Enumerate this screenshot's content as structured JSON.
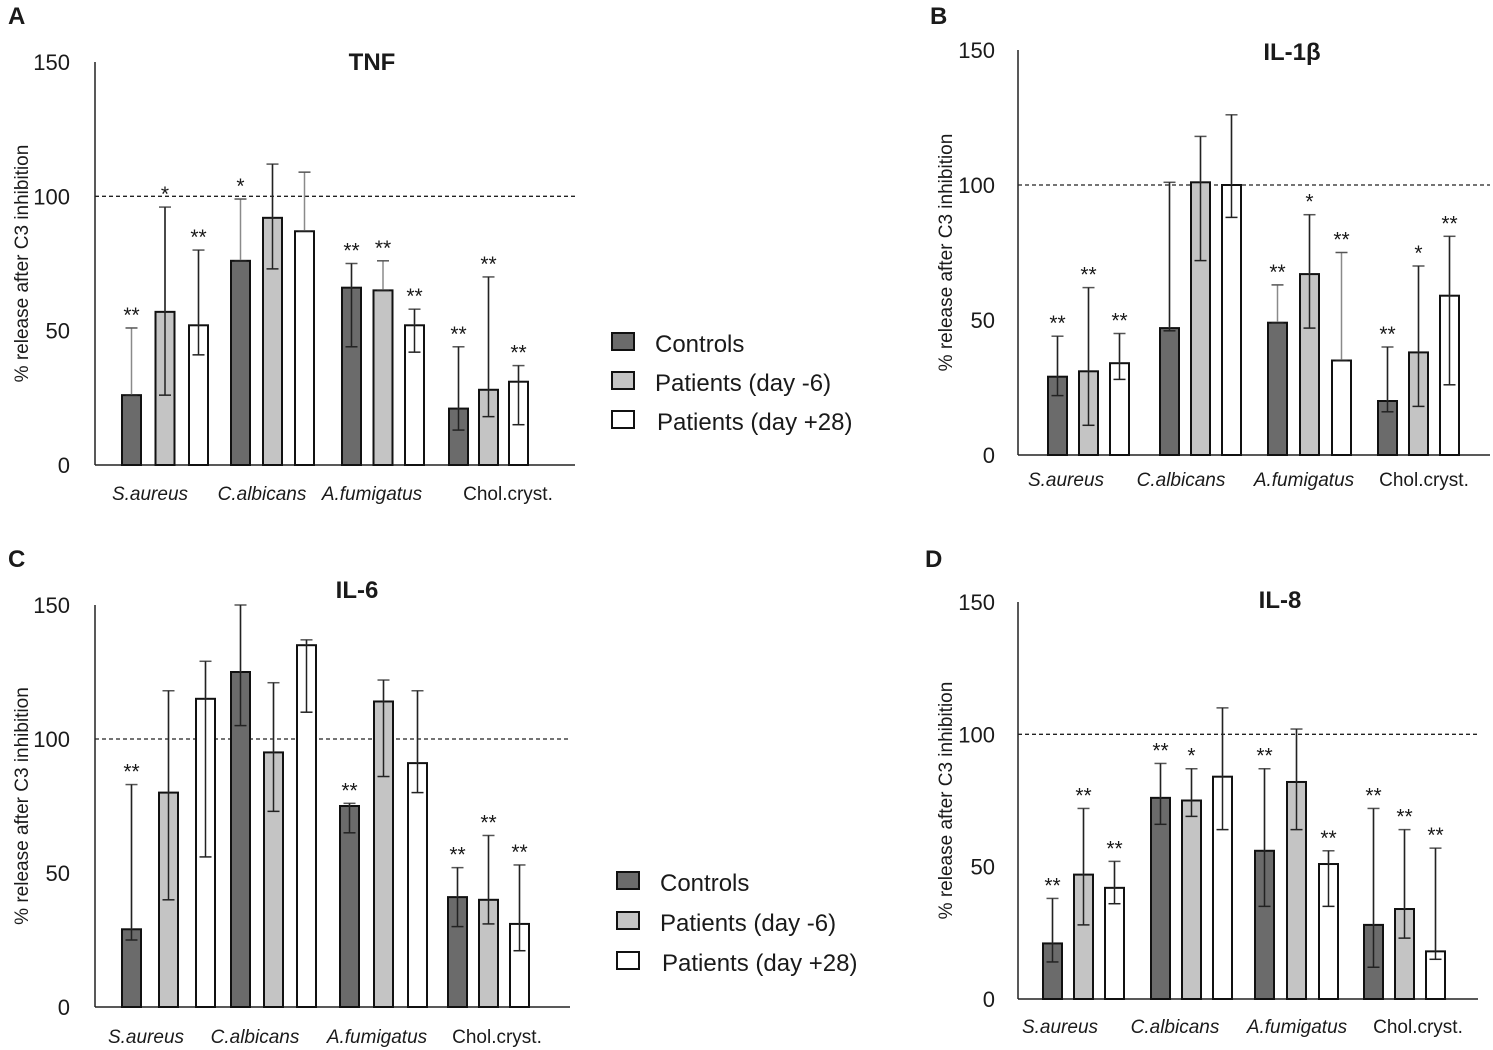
{
  "legend": {
    "series": [
      {
        "name": "Controls",
        "color": "#6b6b6b"
      },
      {
        "name": "Patients (day -6)",
        "color": "#c4c4c4"
      },
      {
        "name": "Patients (day +28)",
        "color": "#ffffff"
      }
    ]
  },
  "chart_data": [
    {
      "panel": "A",
      "type": "bar",
      "title": "TNF",
      "ylabel": "% release after C3 inhibition",
      "ylim": [
        0,
        150
      ],
      "yticks": [
        0,
        50,
        100,
        150
      ],
      "reference_line": 100,
      "categories": [
        "S.aureus",
        "C.albicans",
        "A.fumigatus",
        "Chol.cryst."
      ],
      "categories_italic": [
        true,
        true,
        true,
        false
      ],
      "series": [
        {
          "name": "Controls",
          "values": [
            26,
            76,
            66,
            21
          ],
          "err_low": [
            26,
            76,
            44,
            13
          ],
          "err_high": [
            51,
            99,
            75,
            44
          ],
          "sig": [
            "**",
            "*",
            "**",
            "**"
          ]
        },
        {
          "name": "Patients (day -6)",
          "values": [
            57,
            92,
            65,
            28
          ],
          "err_low": [
            26,
            73,
            65,
            18
          ],
          "err_high": [
            96,
            112,
            76,
            70
          ],
          "sig": [
            "*",
            "",
            "**",
            "**"
          ]
        },
        {
          "name": "Patients (day +28)",
          "values": [
            52,
            87,
            52,
            31
          ],
          "err_low": [
            41,
            87,
            42,
            15
          ],
          "err_high": [
            80,
            109,
            58,
            37
          ],
          "sig": [
            "**",
            "",
            "**",
            "**"
          ]
        }
      ]
    },
    {
      "panel": "B",
      "type": "bar",
      "title": "IL-1β",
      "ylabel": "% release after C3 inhibition",
      "ylim": [
        0,
        150
      ],
      "yticks": [
        0,
        50,
        100,
        150
      ],
      "reference_line": 100,
      "categories": [
        "S.aureus",
        "C.albicans",
        "A.fumigatus",
        "Chol.cryst."
      ],
      "categories_italic": [
        true,
        true,
        true,
        false
      ],
      "series": [
        {
          "name": "Controls",
          "values": [
            29,
            47,
            49,
            20
          ],
          "err_low": [
            22,
            46,
            49,
            16
          ],
          "err_high": [
            44,
            101,
            63,
            40
          ],
          "sig": [
            "**",
            "",
            "**",
            "**"
          ]
        },
        {
          "name": "Patients (day -6)",
          "values": [
            31,
            101,
            67,
            38
          ],
          "err_low": [
            11,
            72,
            47,
            18
          ],
          "err_high": [
            62,
            118,
            89,
            70
          ],
          "sig": [
            "**",
            "",
            "*",
            "*"
          ]
        },
        {
          "name": "Patients (day +28)",
          "values": [
            34,
            100,
            35,
            59
          ],
          "err_low": [
            28,
            88,
            35,
            26
          ],
          "err_high": [
            45,
            126,
            75,
            81
          ],
          "sig": [
            "**",
            "",
            "**",
            "**"
          ]
        }
      ]
    },
    {
      "panel": "C",
      "type": "bar",
      "title": "IL-6",
      "ylabel": "% release after C3 inhibition",
      "ylim": [
        0,
        150
      ],
      "yticks": [
        0,
        50,
        100,
        150
      ],
      "reference_line": 100,
      "categories": [
        "S.aureus",
        "C.albicans",
        "A.fumigatus",
        "Chol.cryst."
      ],
      "categories_italic": [
        true,
        true,
        true,
        false
      ],
      "series": [
        {
          "name": "Controls",
          "values": [
            29,
            125,
            75,
            41
          ],
          "err_low": [
            25,
            105,
            65,
            30
          ],
          "err_high": [
            83,
            150,
            76,
            52
          ],
          "sig": [
            "**",
            "",
            "**",
            "**"
          ]
        },
        {
          "name": "Patients (day -6)",
          "values": [
            80,
            95,
            114,
            40
          ],
          "err_low": [
            40,
            73,
            86,
            31
          ],
          "err_high": [
            118,
            121,
            122,
            64
          ],
          "sig": [
            "",
            "",
            "",
            "**"
          ]
        },
        {
          "name": "Patients (day +28)",
          "values": [
            115,
            135,
            91,
            31
          ],
          "err_low": [
            56,
            110,
            80,
            21
          ],
          "err_high": [
            129,
            137,
            118,
            53
          ],
          "sig": [
            "",
            "",
            "",
            "**"
          ]
        }
      ]
    },
    {
      "panel": "D",
      "type": "bar",
      "title": "IL-8",
      "ylabel": "% release after C3 inhibition",
      "ylim": [
        0,
        150
      ],
      "yticks": [
        0,
        50,
        100,
        150
      ],
      "reference_line": 100,
      "categories": [
        "S.aureus",
        "C.albicans",
        "A.fumigatus",
        "Chol.cryst."
      ],
      "categories_italic": [
        true,
        true,
        true,
        false
      ],
      "series": [
        {
          "name": "Controls",
          "values": [
            21,
            76,
            56,
            28
          ],
          "err_low": [
            14,
            66,
            35,
            12
          ],
          "err_high": [
            38,
            89,
            87,
            72
          ],
          "sig": [
            "**",
            "**",
            "**",
            "**"
          ]
        },
        {
          "name": "Patients (day -6)",
          "values": [
            47,
            75,
            82,
            34
          ],
          "err_low": [
            28,
            69,
            64,
            23
          ],
          "err_high": [
            72,
            87,
            102,
            64
          ],
          "sig": [
            "**",
            "*",
            "",
            "**"
          ]
        },
        {
          "name": "Patients (day +28)",
          "values": [
            42,
            84,
            51,
            18
          ],
          "err_low": [
            36,
            64,
            35,
            15
          ],
          "err_high": [
            52,
            110,
            56,
            57
          ],
          "sig": [
            "**",
            "",
            "**",
            "**"
          ]
        }
      ]
    }
  ]
}
